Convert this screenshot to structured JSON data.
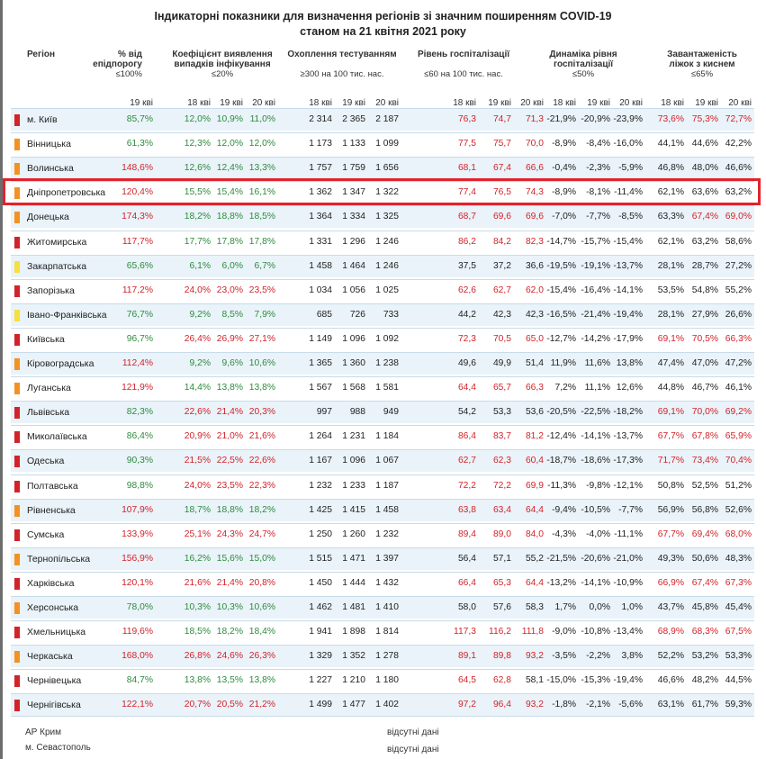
{
  "title": {
    "line1": "Індикаторні показники для визначення регіонів зі значним поширенням COVID-19",
    "line2": "станом на 21 квітня 2021 року"
  },
  "headers": {
    "region": "Регіон",
    "epid": {
      "l1": "% від",
      "l2": "епідпорогу",
      "threshold": "≤100%"
    },
    "detect": {
      "l1": "Коефіцієнт виявлення",
      "l2": "випадків інфікування",
      "threshold": "≤20%"
    },
    "testing": {
      "l1": "Охоплення тестуванням",
      "threshold": "≥300 на 100 тис. нас."
    },
    "hosp": {
      "l1": "Рівень госпіталізації",
      "threshold": "≤60 на 100 тис. нас."
    },
    "dyn": {
      "l1": "Динаміка рівня",
      "l2": "госпіталізації",
      "threshold": "≤50%"
    },
    "oxy": {
      "l1": "Завантаженість",
      "l2": "ліжок з киснем",
      "threshold": "≤65%"
    }
  },
  "days": {
    "d18": "18 кві",
    "d19": "19 кві",
    "d20": "20 кві"
  },
  "colors": {
    "red": "#d2232a",
    "orange": "#f39223",
    "yellow": "#f7e03c",
    "green": "#2e8b3e",
    "highlight": "#e0232b"
  },
  "rows": [
    {
      "region": "м. Київ",
      "marker": "red",
      "epid": "85,7%",
      "det": [
        "12,0%",
        "10,9%",
        "11,0%"
      ],
      "test": [
        "2 314",
        "2 365",
        "2 187"
      ],
      "hosp": [
        "76,3",
        "74,7",
        "71,3"
      ],
      "dyn": [
        "-21,9%",
        "-20,9%",
        "-23,9%"
      ],
      "oxy": [
        "73,6%",
        "75,3%",
        "72,7%"
      ]
    },
    {
      "region": "Вінницька",
      "marker": "orange",
      "epid": "61,3%",
      "det": [
        "12,3%",
        "12,0%",
        "12,0%"
      ],
      "test": [
        "1 173",
        "1 133",
        "1 099"
      ],
      "hosp": [
        "77,5",
        "75,7",
        "70,0"
      ],
      "dyn": [
        "-8,9%",
        "-8,4%",
        "-16,0%"
      ],
      "oxy": [
        "44,1%",
        "44,6%",
        "42,2%"
      ]
    },
    {
      "region": "Волинська",
      "marker": "orange",
      "epid": "148,6%",
      "det": [
        "12,6%",
        "12,4%",
        "13,3%"
      ],
      "test": [
        "1 757",
        "1 759",
        "1 656"
      ],
      "hosp": [
        "68,1",
        "67,4",
        "66,6"
      ],
      "dyn": [
        "-0,4%",
        "-2,3%",
        "-5,9%"
      ],
      "oxy": [
        "46,8%",
        "48,0%",
        "46,6%"
      ]
    },
    {
      "region": "Дніпропетровська",
      "marker": "orange",
      "epid": "120,4%",
      "det": [
        "15,5%",
        "15,4%",
        "16,1%"
      ],
      "test": [
        "1 362",
        "1 347",
        "1 322"
      ],
      "hosp": [
        "77,4",
        "76,5",
        "74,3"
      ],
      "dyn": [
        "-8,9%",
        "-8,1%",
        "-11,4%"
      ],
      "oxy": [
        "62,1%",
        "63,6%",
        "63,2%"
      ]
    },
    {
      "region": "Донецька",
      "marker": "orange",
      "epid": "174,3%",
      "det": [
        "18,2%",
        "18,8%",
        "18,5%"
      ],
      "test": [
        "1 364",
        "1 334",
        "1 325"
      ],
      "hosp": [
        "68,7",
        "69,6",
        "69,6"
      ],
      "dyn": [
        "-7,0%",
        "-7,7%",
        "-8,5%"
      ],
      "oxy": [
        "63,3%",
        "67,4%",
        "69,0%"
      ]
    },
    {
      "region": "Житомирська",
      "marker": "red",
      "epid": "117,7%",
      "det": [
        "17,7%",
        "17,8%",
        "17,8%"
      ],
      "test": [
        "1 331",
        "1 296",
        "1 246"
      ],
      "hosp": [
        "86,2",
        "84,2",
        "82,3"
      ],
      "dyn": [
        "-14,7%",
        "-15,7%",
        "-15,4%"
      ],
      "oxy": [
        "62,1%",
        "63,2%",
        "58,6%"
      ]
    },
    {
      "region": "Закарпатська",
      "marker": "yellow",
      "epid": "65,6%",
      "det": [
        "6,1%",
        "6,0%",
        "6,7%"
      ],
      "test": [
        "1 458",
        "1 464",
        "1 246"
      ],
      "hosp": [
        "37,5",
        "37,2",
        "36,6"
      ],
      "dyn": [
        "-19,5%",
        "-19,1%",
        "-13,7%"
      ],
      "oxy": [
        "28,1%",
        "28,7%",
        "27,2%"
      ]
    },
    {
      "region": "Запорізька",
      "marker": "red",
      "epid": "117,2%",
      "det": [
        "24,0%",
        "23,0%",
        "23,5%"
      ],
      "test": [
        "1 034",
        "1 056",
        "1 025"
      ],
      "hosp": [
        "62,6",
        "62,7",
        "62,0"
      ],
      "dyn": [
        "-15,4%",
        "-16,4%",
        "-14,1%"
      ],
      "oxy": [
        "53,5%",
        "54,8%",
        "55,2%"
      ]
    },
    {
      "region": "Івано-Франківська",
      "marker": "yellow",
      "epid": "76,7%",
      "det": [
        "9,2%",
        "8,5%",
        "7,9%"
      ],
      "test": [
        "685",
        "726",
        "733"
      ],
      "hosp": [
        "44,2",
        "42,3",
        "42,3"
      ],
      "dyn": [
        "-16,5%",
        "-21,4%",
        "-19,4%"
      ],
      "oxy": [
        "28,1%",
        "27,9%",
        "26,6%"
      ]
    },
    {
      "region": "Київська",
      "marker": "red",
      "epid": "96,7%",
      "det": [
        "26,4%",
        "26,9%",
        "27,1%"
      ],
      "test": [
        "1 149",
        "1 096",
        "1 092"
      ],
      "hosp": [
        "72,3",
        "70,5",
        "65,0"
      ],
      "dyn": [
        "-12,7%",
        "-14,2%",
        "-17,9%"
      ],
      "oxy": [
        "69,1%",
        "70,5%",
        "66,3%"
      ]
    },
    {
      "region": "Кіровоградська",
      "marker": "orange",
      "epid": "112,4%",
      "det": [
        "9,2%",
        "9,6%",
        "10,6%"
      ],
      "test": [
        "1 365",
        "1 360",
        "1 238"
      ],
      "hosp": [
        "49,6",
        "49,9",
        "51,4"
      ],
      "dyn": [
        "11,9%",
        "11,6%",
        "13,8%"
      ],
      "oxy": [
        "47,4%",
        "47,0%",
        "47,2%"
      ]
    },
    {
      "region": "Луганська",
      "marker": "orange",
      "epid": "121,9%",
      "det": [
        "14,4%",
        "13,8%",
        "13,8%"
      ],
      "test": [
        "1 567",
        "1 568",
        "1 581"
      ],
      "hosp": [
        "64,4",
        "65,7",
        "66,3"
      ],
      "dyn": [
        "7,2%",
        "11,1%",
        "12,6%"
      ],
      "oxy": [
        "44,8%",
        "46,7%",
        "46,1%"
      ]
    },
    {
      "region": "Львівська",
      "marker": "red",
      "epid": "82,3%",
      "det": [
        "22,6%",
        "21,4%",
        "20,3%"
      ],
      "test": [
        "997",
        "988",
        "949"
      ],
      "hosp": [
        "54,2",
        "53,3",
        "53,6"
      ],
      "dyn": [
        "-20,5%",
        "-22,5%",
        "-18,2%"
      ],
      "oxy": [
        "69,1%",
        "70,0%",
        "69,2%"
      ]
    },
    {
      "region": "Миколаївська",
      "marker": "red",
      "epid": "86,4%",
      "det": [
        "20,9%",
        "21,0%",
        "21,6%"
      ],
      "test": [
        "1 264",
        "1 231",
        "1 184"
      ],
      "hosp": [
        "86,4",
        "83,7",
        "81,2"
      ],
      "dyn": [
        "-12,4%",
        "-14,1%",
        "-13,7%"
      ],
      "oxy": [
        "67,7%",
        "67,8%",
        "65,9%"
      ]
    },
    {
      "region": "Одеська",
      "marker": "red",
      "epid": "90,3%",
      "det": [
        "21,5%",
        "22,5%",
        "22,6%"
      ],
      "test": [
        "1 167",
        "1 096",
        "1 067"
      ],
      "hosp": [
        "62,7",
        "62,3",
        "60,4"
      ],
      "dyn": [
        "-18,7%",
        "-18,6%",
        "-17,3%"
      ],
      "oxy": [
        "71,7%",
        "73,4%",
        "70,4%"
      ]
    },
    {
      "region": "Полтавська",
      "marker": "red",
      "epid": "98,8%",
      "det": [
        "24,0%",
        "23,5%",
        "22,3%"
      ],
      "test": [
        "1 232",
        "1 233",
        "1 187"
      ],
      "hosp": [
        "72,2",
        "72,2",
        "69,9"
      ],
      "dyn": [
        "-11,3%",
        "-9,8%",
        "-12,1%"
      ],
      "oxy": [
        "50,8%",
        "52,5%",
        "51,2%"
      ]
    },
    {
      "region": "Рівненська",
      "marker": "orange",
      "epid": "107,9%",
      "det": [
        "18,7%",
        "18,8%",
        "18,2%"
      ],
      "test": [
        "1 425",
        "1 415",
        "1 458"
      ],
      "hosp": [
        "63,8",
        "63,4",
        "64,4"
      ],
      "dyn": [
        "-9,4%",
        "-10,5%",
        "-7,7%"
      ],
      "oxy": [
        "56,9%",
        "56,8%",
        "52,6%"
      ]
    },
    {
      "region": "Сумська",
      "marker": "red",
      "epid": "133,9%",
      "det": [
        "25,1%",
        "24,3%",
        "24,7%"
      ],
      "test": [
        "1 250",
        "1 260",
        "1 232"
      ],
      "hosp": [
        "89,4",
        "89,0",
        "84,0"
      ],
      "dyn": [
        "-4,3%",
        "-4,0%",
        "-11,1%"
      ],
      "oxy": [
        "67,7%",
        "69,4%",
        "68,0%"
      ]
    },
    {
      "region": "Тернопільська",
      "marker": "orange",
      "epid": "156,9%",
      "det": [
        "16,2%",
        "15,6%",
        "15,0%"
      ],
      "test": [
        "1 515",
        "1 471",
        "1 397"
      ],
      "hosp": [
        "56,4",
        "57,1",
        "55,2"
      ],
      "dyn": [
        "-21,5%",
        "-20,6%",
        "-21,0%"
      ],
      "oxy": [
        "49,3%",
        "50,6%",
        "48,3%"
      ]
    },
    {
      "region": "Харківська",
      "marker": "red",
      "epid": "120,1%",
      "det": [
        "21,6%",
        "21,4%",
        "20,8%"
      ],
      "test": [
        "1 450",
        "1 444",
        "1 432"
      ],
      "hosp": [
        "66,4",
        "65,3",
        "64,4"
      ],
      "dyn": [
        "-13,2%",
        "-14,1%",
        "-10,9%"
      ],
      "oxy": [
        "66,9%",
        "67,4%",
        "67,3%"
      ]
    },
    {
      "region": "Херсонська",
      "marker": "orange",
      "epid": "78,0%",
      "det": [
        "10,3%",
        "10,3%",
        "10,6%"
      ],
      "test": [
        "1 462",
        "1 481",
        "1 410"
      ],
      "hosp": [
        "58,0",
        "57,6",
        "58,3"
      ],
      "dyn": [
        "1,7%",
        "0,0%",
        "1,0%"
      ],
      "oxy": [
        "43,7%",
        "45,8%",
        "45,4%"
      ]
    },
    {
      "region": "Хмельницька",
      "marker": "red",
      "epid": "119,6%",
      "det": [
        "18,5%",
        "18,2%",
        "18,4%"
      ],
      "test": [
        "1 941",
        "1 898",
        "1 814"
      ],
      "hosp": [
        "117,3",
        "116,2",
        "111,8"
      ],
      "dyn": [
        "-9,0%",
        "-10,8%",
        "-13,4%"
      ],
      "oxy": [
        "68,9%",
        "68,3%",
        "67,5%"
      ]
    },
    {
      "region": "Черкаська",
      "marker": "orange",
      "epid": "168,0%",
      "det": [
        "26,8%",
        "24,6%",
        "26,3%"
      ],
      "test": [
        "1 329",
        "1 352",
        "1 278"
      ],
      "hosp": [
        "89,1",
        "89,8",
        "93,2"
      ],
      "dyn": [
        "-3,5%",
        "-2,2%",
        "3,8%"
      ],
      "oxy": [
        "52,2%",
        "53,2%",
        "53,3%"
      ]
    },
    {
      "region": "Чернівецька",
      "marker": "red",
      "epid": "84,7%",
      "det": [
        "13,8%",
        "13,5%",
        "13,8%"
      ],
      "test": [
        "1 227",
        "1 210",
        "1 180"
      ],
      "hosp": [
        "64,5",
        "62,8",
        "58,1"
      ],
      "dyn": [
        "-15,0%",
        "-15,3%",
        "-19,4%"
      ],
      "oxy": [
        "46,6%",
        "48,2%",
        "44,5%"
      ]
    },
    {
      "region": "Чернігівська",
      "marker": "red",
      "epid": "122,1%",
      "det": [
        "20,7%",
        "20,5%",
        "21,2%"
      ],
      "test": [
        "1 499",
        "1 477",
        "1 402"
      ],
      "hosp": [
        "97,2",
        "96,4",
        "93,2"
      ],
      "dyn": [
        "-1,8%",
        "-2,1%",
        "-5,6%"
      ],
      "oxy": [
        "63,1%",
        "61,7%",
        "59,3%"
      ]
    }
  ],
  "footer": [
    {
      "region": "АР Крим",
      "note": "відсутні дані"
    },
    {
      "region": "м. Севастополь",
      "note": "відсутні дані"
    }
  ]
}
